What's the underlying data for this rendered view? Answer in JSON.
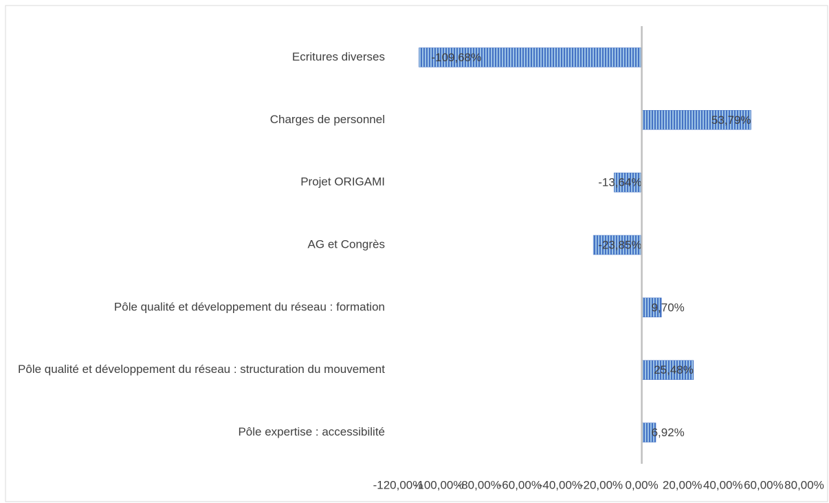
{
  "chart_data": {
    "type": "hbar",
    "categories": [
      "Ecritures diverses",
      "Charges de personnel",
      "Projet ORIGAMI",
      "AG et Congrès",
      "Pôle qualité et développement du réseau : formation",
      "Pôle qualité et développement du réseau : structuration du mouvement",
      "Pôle expertise : accessibilité"
    ],
    "values": [
      -109.68,
      53.79,
      -13.64,
      -23.85,
      9.7,
      25.48,
      6.92
    ],
    "value_labels": [
      "-109,68%",
      "53,79%",
      "-13,64%",
      "-23,85%",
      "9,70%",
      "25,48%",
      "6,92%"
    ],
    "color": "#4472c4",
    "xlim": [
      -120,
      80
    ],
    "xticks": [
      {
        "value": -120,
        "label": "-120,00%"
      },
      {
        "value": -100,
        "label": "-100,00%"
      },
      {
        "value": -80,
        "label": "-80,00%"
      },
      {
        "value": -60,
        "label": "-60,00%"
      },
      {
        "value": -40,
        "label": "-40,00%"
      },
      {
        "value": -20,
        "label": "-20,00%"
      },
      {
        "value": 0,
        "label": "0,00%"
      },
      {
        "value": 20,
        "label": "20,00%"
      },
      {
        "value": 40,
        "label": "40,00%"
      },
      {
        "value": 60,
        "label": "60,00%"
      },
      {
        "value": 80,
        "label": "80,00%"
      }
    ]
  }
}
